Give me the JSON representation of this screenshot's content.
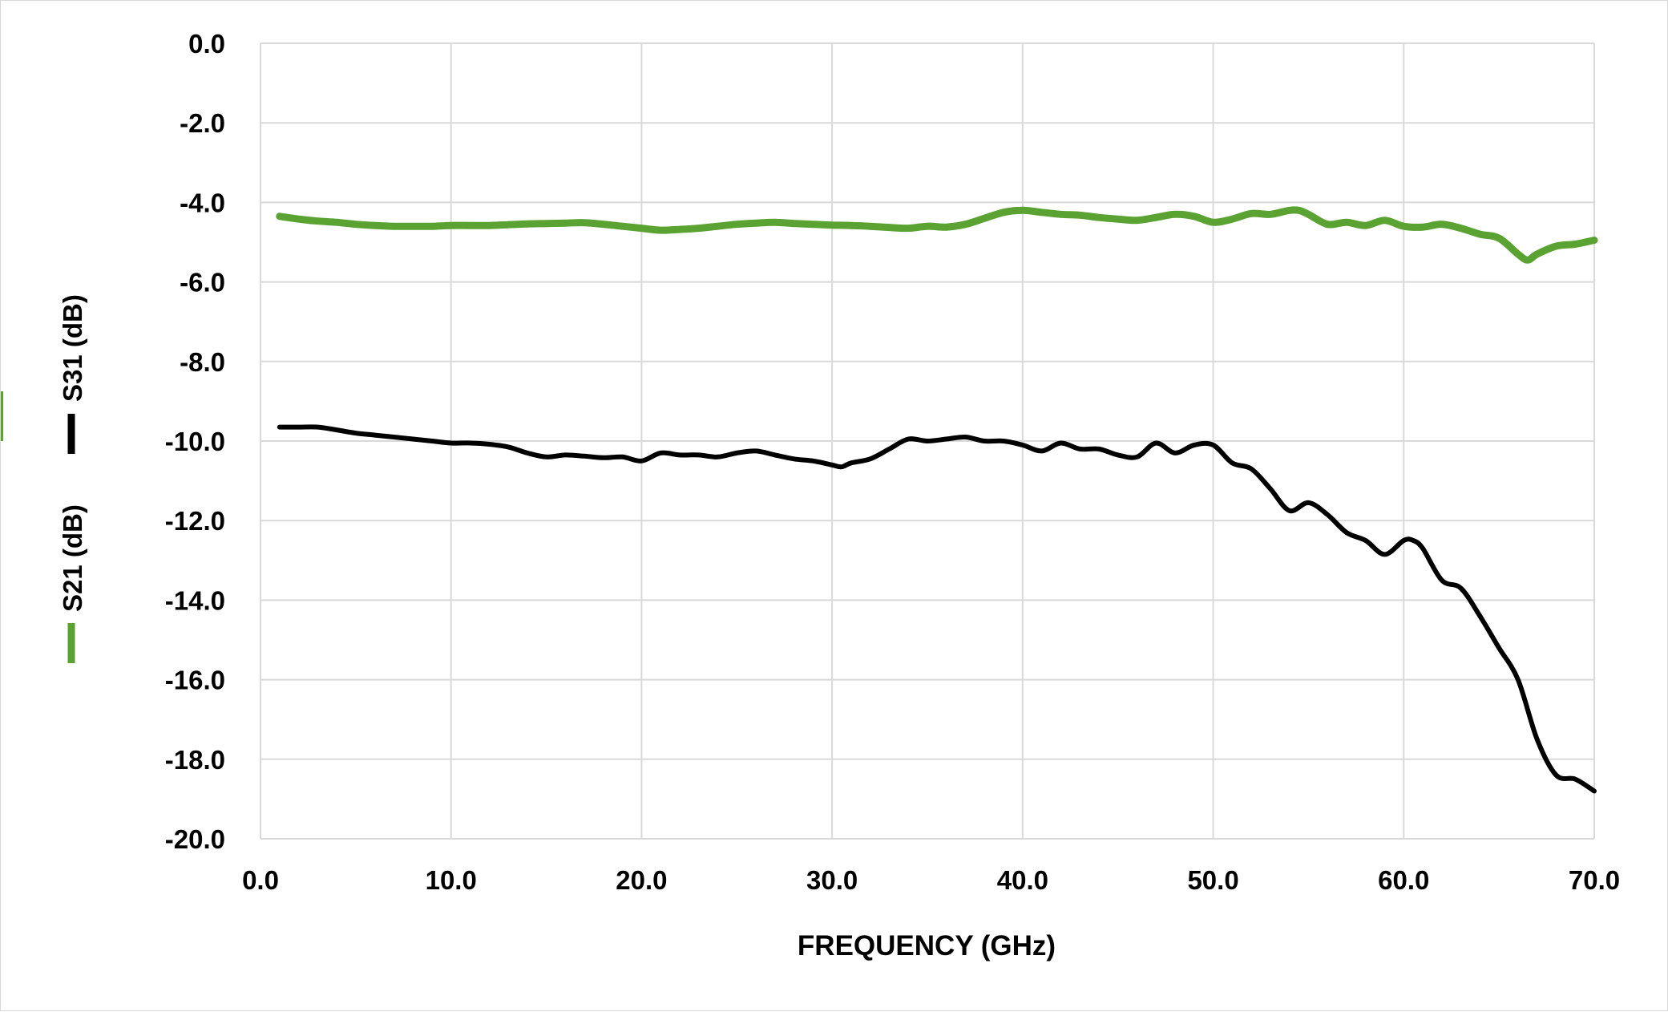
{
  "chart_data": {
    "type": "line",
    "xlabel": "FREQUENCY (GHz)",
    "ylabel": "",
    "xlim": [
      0,
      70
    ],
    "ylim": [
      -20,
      0
    ],
    "x_ticks": [
      "0.0",
      "10.0",
      "20.0",
      "30.0",
      "40.0",
      "50.0",
      "60.0",
      "70.0"
    ],
    "y_ticks": [
      "0.0",
      "-2.0",
      "-4.0",
      "-6.0",
      "-8.0",
      "-10.0",
      "-12.0",
      "-14.0",
      "-16.0",
      "-18.0",
      "-20.0"
    ],
    "grid": true,
    "legend_position": "left, rotated vertical",
    "series": [
      {
        "name": "S21 (dB)",
        "color": "#5aa332",
        "x": [
          1,
          2,
          3,
          4,
          5,
          6,
          7,
          8,
          9,
          10,
          11,
          12,
          13,
          14,
          15,
          16,
          17,
          18,
          19,
          20,
          21,
          22,
          23,
          24,
          25,
          26,
          27,
          28,
          29,
          30,
          31,
          32,
          33,
          34,
          35,
          36,
          37,
          38,
          39,
          40,
          41,
          42,
          43,
          44,
          45,
          46,
          47,
          48,
          49,
          50,
          51,
          52,
          53,
          54,
          54.5,
          55,
          56,
          57,
          58,
          59,
          60,
          61,
          62,
          63,
          64,
          65,
          66,
          66.5,
          67,
          68,
          69,
          70
        ],
        "values": [
          -4.35,
          -4.42,
          -4.47,
          -4.5,
          -4.55,
          -4.58,
          -4.6,
          -4.6,
          -4.6,
          -4.58,
          -4.58,
          -4.58,
          -4.56,
          -4.54,
          -4.53,
          -4.52,
          -4.51,
          -4.55,
          -4.6,
          -4.65,
          -4.7,
          -4.68,
          -4.65,
          -4.6,
          -4.55,
          -4.52,
          -4.5,
          -4.53,
          -4.55,
          -4.57,
          -4.58,
          -4.6,
          -4.63,
          -4.65,
          -4.6,
          -4.62,
          -4.55,
          -4.4,
          -4.25,
          -4.2,
          -4.25,
          -4.3,
          -4.32,
          -4.38,
          -4.42,
          -4.45,
          -4.38,
          -4.3,
          -4.35,
          -4.5,
          -4.42,
          -4.28,
          -4.3,
          -4.2,
          -4.2,
          -4.3,
          -4.55,
          -4.5,
          -4.58,
          -4.45,
          -4.6,
          -4.62,
          -4.55,
          -4.65,
          -4.8,
          -4.9,
          -5.3,
          -5.45,
          -5.3,
          -5.1,
          -5.05,
          -4.95
        ]
      },
      {
        "name": "S31 (dB)",
        "color": "#000000",
        "x": [
          1,
          2,
          3,
          4,
          5,
          6,
          7,
          8,
          9,
          10,
          11,
          12,
          13,
          14,
          15,
          16,
          17,
          18,
          19,
          20,
          21,
          22,
          23,
          24,
          25,
          26,
          27,
          28,
          29,
          30,
          30.5,
          31,
          32,
          33,
          34,
          35,
          36,
          37,
          38,
          39,
          40,
          41,
          42,
          43,
          44,
          45,
          46,
          47,
          48,
          49,
          50,
          51,
          52,
          53,
          54,
          55,
          56,
          57,
          58,
          59,
          60,
          60.5,
          61,
          62,
          63,
          64,
          65,
          66,
          67,
          68,
          69,
          70
        ],
        "values": [
          -9.65,
          -9.65,
          -9.65,
          -9.72,
          -9.8,
          -9.85,
          -9.9,
          -9.95,
          -10.0,
          -10.05,
          -10.05,
          -10.08,
          -10.15,
          -10.3,
          -10.4,
          -10.35,
          -10.38,
          -10.42,
          -10.4,
          -10.5,
          -10.3,
          -10.35,
          -10.35,
          -10.4,
          -10.3,
          -10.25,
          -10.35,
          -10.45,
          -10.5,
          -10.6,
          -10.65,
          -10.55,
          -10.45,
          -10.2,
          -9.95,
          -10.0,
          -9.95,
          -9.9,
          -10.0,
          -10.0,
          -10.1,
          -10.25,
          -10.05,
          -10.2,
          -10.2,
          -10.35,
          -10.4,
          -10.05,
          -10.3,
          -10.1,
          -10.1,
          -10.55,
          -10.7,
          -11.2,
          -11.75,
          -11.55,
          -11.85,
          -12.3,
          -12.5,
          -12.85,
          -12.5,
          -12.5,
          -12.7,
          -13.5,
          -13.7,
          -14.4,
          -15.2,
          -16.0,
          -17.5,
          -18.4,
          -18.5,
          -18.8
        ]
      }
    ]
  }
}
